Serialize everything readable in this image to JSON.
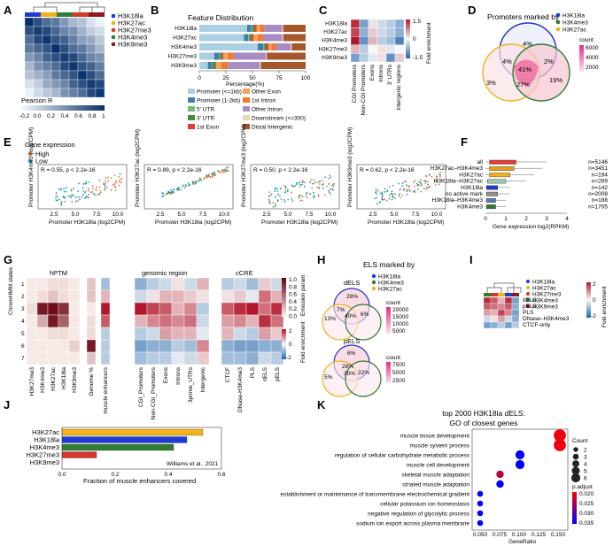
{
  "colors": {
    "H3K18la": "#1f3bd4",
    "H3K27ac": "#f3b21a",
    "H3K27me3": "#d4382c",
    "H3K4me3": "#2f7d32",
    "H3K9me3": "#8b1a1a",
    "high": "#e9783a",
    "low": "#1aa0a6"
  },
  "panelLabels": [
    "A",
    "B",
    "C",
    "D",
    "E",
    "F",
    "G",
    "H",
    "I",
    "J",
    "K"
  ],
  "marks": [
    "H3K18la",
    "H3K27ac",
    "H3K27me3",
    "H3K4me3",
    "H3K9me3"
  ],
  "panelA": {
    "legend_title": "Pearson R",
    "ticks": [
      "-0.2",
      "0.0",
      "0.2",
      "0.4",
      "0.6",
      "0.8",
      "1"
    ]
  },
  "panelB": {
    "title": "Feature Distribution",
    "rows": [
      "H3K18la",
      "H3K27ac",
      "H3K4me3",
      "H3K27me3",
      "H3K9me3"
    ],
    "xlabel": "Percentage(%)",
    "ticks": [
      "0",
      "25",
      "50",
      "75",
      "100"
    ],
    "legend": [
      {
        "label": "Promoter (<=1kb)",
        "color": "#a9cfe3"
      },
      {
        "label": "Promoter (1-2kb)",
        "color": "#3e80a8"
      },
      {
        "label": "5' UTR",
        "color": "#7ab87b"
      },
      {
        "label": "3' UTR",
        "color": "#4c8a3d"
      },
      {
        "label": "1st Exon",
        "color": "#e53935"
      },
      {
        "label": "Other Exon",
        "color": "#f4a35c"
      },
      {
        "label": "1st Intron",
        "color": "#f07a2c"
      },
      {
        "label": "Other Intron",
        "color": "#a98bc4"
      },
      {
        "label": "Downstream (<=300)",
        "color": "#e6d8b0"
      },
      {
        "label": "Distal Intergenic",
        "color": "#a5562b"
      }
    ]
  },
  "panelC": {
    "rows": [
      "H3K18la",
      "H3K27ac",
      "H3K4me3",
      "H3K27me3",
      "H3K9me3"
    ],
    "cols": [
      "CGI Promoters",
      "Non-CGI Promoters",
      "Exons",
      "Introns",
      "3' UTRs",
      "Intergenic regions"
    ],
    "legend_title": "Fold enrichment",
    "legend_ticks": [
      "1.5",
      "0",
      "-1.5"
    ]
  },
  "panelD": {
    "title": "Promoters marked by",
    "labels": [
      "H3K18la",
      "H3K4me3",
      "H3K27ac"
    ],
    "regions": [
      "4%",
      "4%",
      "41%",
      "2%",
      "3%",
      "27%",
      "19%"
    ],
    "count_title": "count",
    "count_ticks": [
      "6000",
      "4000",
      "2000"
    ]
  },
  "panelE": {
    "legend_title": "Gene expression",
    "legend_items": [
      "High",
      "Low"
    ],
    "plots": [
      {
        "ylabel": "Promoter H3K4me3 (log2CPM)",
        "xlabel": "Promoter H3K18la (log2CPM)",
        "stat": "R = 0.55, p < 2.2e-16"
      },
      {
        "ylabel": "Promoter H3K27ac (log2CPM)",
        "xlabel": "Promoter H3K18la (log2CPM)",
        "stat": "R = 0.89, p < 2.2e-16"
      },
      {
        "ylabel": "Promoter H3K27me3 (log2CPM)",
        "xlabel": "Promoter H3K18la (log2CPM)",
        "stat": "R = 0.50, p < 2.2e-16"
      },
      {
        "ylabel": "Promoter H3K9me3 (log2CPM)",
        "xlabel": "Promoter H3K18la (log2CPM)",
        "stat": "R = 0.62, p < 2.2e-16"
      }
    ],
    "xticks": [
      "2.5",
      "5.0",
      "7.5",
      "10.0"
    ]
  },
  "panelF": {
    "rows": [
      "all",
      "H3K27ac–H3K4me3",
      "H3K27ac",
      "H3K18la–H3K27ac",
      "H3K18la",
      "no active mark",
      "H3K18la–H3K4me3",
      "H3K4me3"
    ],
    "counts": [
      "n=5146",
      "n=3451",
      "n=194",
      "n=269",
      "n=142",
      "n=2008",
      "n=188",
      "n=1705"
    ],
    "xlabel": "Gene expression log2(RPKM)",
    "ticks": [
      "0",
      "1",
      "2",
      "3",
      "4"
    ]
  },
  "panelG": {
    "ylabel": "ChromHMM states",
    "states": [
      "1",
      "2",
      "3",
      "4",
      "5",
      "6",
      "7"
    ],
    "hPTM_title": "hPTM",
    "hPTM_cols": [
      "H3K27me3",
      "H3K4me3",
      "H3K27ac",
      "H3K18la",
      "H3K9me3"
    ],
    "genome_label": "Genome %",
    "muscle_label": "muscle enhancers",
    "region_title": "genomic region",
    "region_cols": [
      "CGI_Promoters",
      "Non-CGI_Promoters",
      "Exons",
      "Introns",
      "3prime_UTRs",
      "Intergenic"
    ],
    "ccre_title": "cCRE",
    "ccre_cols": [
      "CTCF",
      "DNase-H3K4me3",
      "PLS",
      "dELS",
      "pELS"
    ],
    "emission_title": "Emission param",
    "emission_ticks": [
      "1.0",
      "0.8",
      "0.6",
      "0.4",
      "0.2",
      "0.0"
    ],
    "fold_title": "Fold enrichment",
    "fold_ticks": [
      "2",
      "0",
      "-2"
    ]
  },
  "panelH": {
    "title": "ELS marked by",
    "labels": [
      "H3K18la",
      "H3K4me3",
      "H3K27ac"
    ],
    "dels": {
      "name": "dELS",
      "regions": [
        "28%",
        "7%",
        "13%",
        "40%",
        "6%"
      ]
    },
    "pels": {
      "name": "pELS",
      "regions": [
        "6%",
        "28%",
        "5%",
        "30%",
        "22%"
      ]
    },
    "count1_title": "count",
    "count1_ticks": [
      "20000",
      "15000",
      "10000",
      "5000"
    ],
    "count2_title": "count",
    "count2_ticks": [
      "7500",
      "5000",
      "2500"
    ]
  },
  "panelI": {
    "legend": [
      "H3K18la",
      "H3K27ac",
      "H3K27me3",
      "H3K4me3",
      "H3K9me3"
    ],
    "rows": [
      "dELS",
      "pELS",
      "PLS",
      "DNase–H3K4me3",
      "CTCF-only"
    ],
    "legend_title": "Fold enrichment",
    "legend_ticks": [
      "2",
      "0",
      "-2"
    ]
  },
  "panelJ": {
    "rows": [
      {
        "name": "H3K27ac",
        "value": 0.53
      },
      {
        "name": "H3K18la",
        "value": 0.47
      },
      {
        "name": "H3K4me3",
        "value": 0.42
      },
      {
        "name": "H3K27me3",
        "value": 0.13
      },
      {
        "name": "H3K9me3",
        "value": 0.0
      }
    ],
    "xlabel": "Fraction of muscle enhancers covered",
    "citation": "Williams et al., 2021",
    "ticks": [
      "0.0",
      "0.2",
      "0.4",
      "0.6"
    ]
  },
  "panelK": {
    "title_line1": "top 2000 H3K18la dELS:",
    "title_line2": "GO of closest genes",
    "terms": [
      "muscle tissue development",
      "muscle system process",
      "regulation of cellular carbohydrate metabolic process",
      "muscle cell development",
      "skeletal muscle adaptation",
      "striated muscle adaptation",
      "establishment or maintenance of transmembrane electrochemical gradient",
      "cellular potassium ion homeostasis",
      "negative regulation of glycolytic process",
      "sodium ion export across plasma membrane"
    ],
    "xlabel": "GeneRatio",
    "xticks": [
      "0.050",
      "0.075",
      "0.100",
      "0.125",
      "0.150"
    ],
    "count_title": "Count",
    "count_ticks": [
      "2",
      "3",
      "4",
      "5",
      "6"
    ],
    "padj_title": "p.adjust",
    "padj_ticks": [
      "0.020",
      "0.025",
      "0.030",
      "0.035"
    ]
  },
  "chart_data": [
    {
      "type": "heatmap",
      "title": "A: Pearson correlation",
      "legend": "Pearson R",
      "range": [
        -0.2,
        1
      ],
      "labels": [
        "H3K18la",
        "H3K27ac",
        "H3K27me3",
        "H3K4me3",
        "H3K9me3"
      ]
    },
    {
      "type": "bar",
      "title": "Feature Distribution",
      "categories": [
        "H3K18la",
        "H3K27ac",
        "H3K4me3",
        "H3K27me3",
        "H3K9me3"
      ],
      "series": [
        {
          "name": "Promoter (<=1kb)",
          "values": [
            45,
            42,
            55,
            14,
            8
          ]
        },
        {
          "name": "Promoter (1-2kb)",
          "values": [
            4,
            4,
            5,
            5,
            4
          ]
        },
        {
          "name": "5' UTR",
          "values": [
            1,
            1,
            1,
            0.5,
            0.3
          ]
        },
        {
          "name": "3' UTR",
          "values": [
            2,
            2,
            2,
            2,
            3
          ]
        },
        {
          "name": "1st Exon",
          "values": [
            2,
            2,
            2,
            1,
            0.5
          ]
        },
        {
          "name": "Other Exon",
          "values": [
            3,
            4,
            3,
            4,
            5
          ]
        },
        {
          "name": "1st Intron",
          "values": [
            4,
            5,
            4,
            6,
            6
          ]
        },
        {
          "name": "Other Intron",
          "values": [
            17,
            18,
            14,
            30,
            30
          ]
        },
        {
          "name": "Downstream (<=300)",
          "values": [
            1,
            1,
            1,
            1,
            1.2
          ]
        },
        {
          "name": "Distal Intergenic",
          "values": [
            21,
            21,
            13,
            36.5,
            42
          ]
        }
      ],
      "xlabel": "Percentage(%)",
      "xlim": [
        0,
        100
      ]
    },
    {
      "type": "bar",
      "title": "F: Gene expression log2(RPKM)",
      "categories": [
        "all",
        "H3K27ac–H3K4me3",
        "H3K27ac",
        "H3K18la–H3K27ac",
        "H3K18la",
        "no active mark",
        "H3K18la–H3K4me3",
        "H3K4me3"
      ],
      "values": [
        0.9,
        0.8,
        0.7,
        0.5,
        0.3,
        0.3,
        0.2,
        0.2
      ],
      "xlabel": "Gene expression log2(RPKM)",
      "xlim": [
        0,
        4
      ]
    },
    {
      "type": "bar",
      "title": "J: Fraction of muscle enhancers covered",
      "categories": [
        "H3K27ac",
        "H3K18la",
        "H3K4me3",
        "H3K27me3",
        "H3K9me3"
      ],
      "values": [
        0.53,
        0.47,
        0.42,
        0.13,
        0.0
      ],
      "xlabel": "Fraction of muscle enhancers covered",
      "xlim": [
        0,
        0.6
      ]
    },
    {
      "type": "scatter",
      "title": "K: top 2000 H3K18la dELS: GO of closest genes",
      "categories": [
        "muscle tissue development",
        "muscle system process",
        "regulation of cellular carbohydrate metabolic process",
        "muscle cell development",
        "skeletal muscle adaptation",
        "striated muscle adaptation",
        "establishment or maintenance of transmembrane electrochemical gradient",
        "cellular potassium ion homeostasis",
        "negative regulation of glycolytic process",
        "sodium ion export across plasma membrane"
      ],
      "x": [
        0.15,
        0.15,
        0.1,
        0.1,
        0.075,
        0.075,
        0.05,
        0.05,
        0.05,
        0.05
      ],
      "count": [
        6,
        6,
        4,
        4,
        3,
        3,
        2,
        2,
        2,
        2
      ],
      "padj": [
        0.021,
        0.021,
        0.035,
        0.035,
        0.024,
        0.035,
        0.035,
        0.035,
        0.035,
        0.035
      ],
      "xlabel": "GeneRatio",
      "xlim": [
        0.05,
        0.15
      ]
    }
  ]
}
